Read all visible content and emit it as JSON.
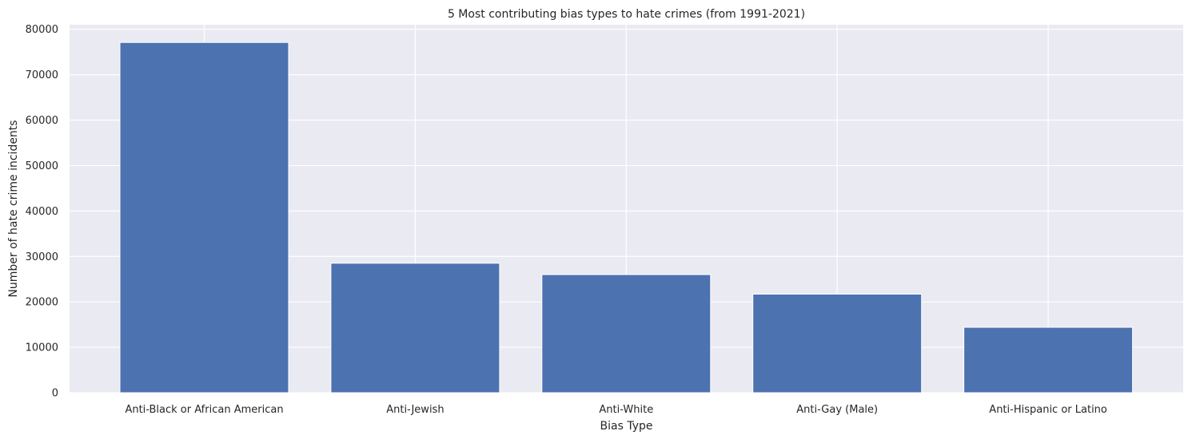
{
  "chart_data": {
    "type": "bar",
    "title": "5 Most contributing bias types to hate crimes (from 1991-2021)",
    "xlabel": "Bias Type",
    "ylabel": "Number of hate crime incidents",
    "categories": [
      "Anti-Black or African American",
      "Anti-Jewish",
      "Anti-White",
      "Anti-Gay (Male)",
      "Anti-Hispanic or Latino"
    ],
    "values": [
      77100,
      28500,
      26000,
      21700,
      14400
    ],
    "ylim": [
      0,
      81000
    ],
    "yticks": [
      0,
      10000,
      20000,
      30000,
      40000,
      50000,
      60000,
      70000,
      80000
    ],
    "grid": true,
    "colors": {
      "bar": "#4c72b0",
      "plot_background": "#eaeaf2",
      "grid": "#ffffff",
      "text": "#262626"
    }
  }
}
